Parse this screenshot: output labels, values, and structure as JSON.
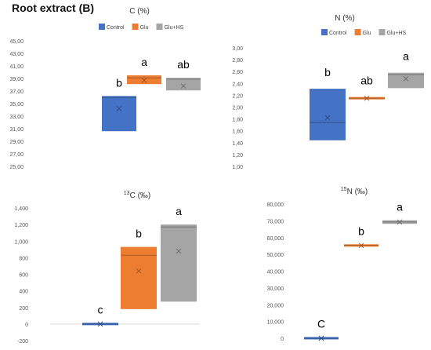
{
  "figure": {
    "title": "Root extract (B)"
  },
  "colors": {
    "Control": "#4472c4",
    "Glu": "#ed7d31",
    "Glu+HS": "#a5a5a5"
  },
  "chart_data": [
    {
      "type": "box",
      "title": "C (%)",
      "categories": [
        "Control",
        "Glu",
        "Glu+HS"
      ],
      "legend": [
        "Control",
        "Glu",
        "Glu+HS"
      ],
      "legend_position": "top",
      "ylim": [
        25,
        45
      ],
      "yticks": [
        "25,00",
        "27,00",
        "29,00",
        "31,00",
        "33,00",
        "35,00",
        "37,00",
        "39,00",
        "41,00",
        "43,00",
        "45,00"
      ],
      "series": [
        {
          "name": "Control",
          "q1": 30.6,
          "q3": 36.2,
          "median": 36.0,
          "mean": 34.2,
          "letter": "b"
        },
        {
          "name": "Glu",
          "q1": 38.1,
          "q3": 39.5,
          "median": 39.1,
          "mean": 38.7,
          "letter": "a"
        },
        {
          "name": "Glu+HS",
          "q1": 37.1,
          "q3": 39.1,
          "median": 38.9,
          "mean": 37.8,
          "letter": "ab"
        }
      ]
    },
    {
      "type": "box",
      "title": "N (%)",
      "categories": [
        "Control",
        "Glu",
        "Glu+HS"
      ],
      "legend": [
        "Control",
        "Glu",
        "Glu+HS"
      ],
      "legend_position": "top",
      "ylim": [
        1.0,
        3.0
      ],
      "yticks": [
        "1,00",
        "1,20",
        "1,40",
        "1,60",
        "1,80",
        "2,00",
        "2,20",
        "2,40",
        "2,60",
        "2,80",
        "3,00"
      ],
      "series": [
        {
          "name": "Control",
          "q1": 1.44,
          "q3": 2.31,
          "median": 1.74,
          "mean": 1.82,
          "letter": "b"
        },
        {
          "name": "Glu",
          "q1": 2.13,
          "q3": 2.17,
          "median": 2.15,
          "mean": 2.15,
          "letter": "ab"
        },
        {
          "name": "Glu+HS",
          "q1": 2.32,
          "q3": 2.58,
          "median": 2.55,
          "mean": 2.48,
          "letter": "a"
        }
      ]
    },
    {
      "type": "box",
      "title_sup": "13",
      "title": "C (‰)",
      "categories": [
        "Control",
        "Glu",
        "Glu+HS"
      ],
      "ylim": [
        -200,
        1400
      ],
      "yticks": [
        "-200",
        "0",
        "200",
        "400",
        "600",
        "800",
        "1,000",
        "1,200",
        "1,400"
      ],
      "series": [
        {
          "name": "Control",
          "q1": -10,
          "q3": 10,
          "median": 0,
          "mean": 0,
          "letter": "c"
        },
        {
          "name": "Glu",
          "q1": 180,
          "q3": 930,
          "median": 830,
          "mean": 640,
          "letter": "b"
        },
        {
          "name": "Glu+HS",
          "q1": 270,
          "q3": 1200,
          "median": 1170,
          "mean": 880,
          "letter": "a"
        }
      ]
    },
    {
      "type": "box",
      "title_sup": "15",
      "title": "N (‰)",
      "categories": [
        "Control",
        "Glu",
        "Glu+HS"
      ],
      "ylim": [
        0,
        80000
      ],
      "yticks": [
        "0",
        "10,000",
        "20,000",
        "30,000",
        "40,000",
        "50,000",
        "60,000",
        "70,000",
        "80,000"
      ],
      "series": [
        {
          "name": "Control",
          "q1": -200,
          "q3": 200,
          "median": 0,
          "mean": 0,
          "letter": "C"
        },
        {
          "name": "Glu",
          "q1": 54800,
          "q3": 55800,
          "median": 55300,
          "mean": 55300,
          "letter": "b"
        },
        {
          "name": "Glu+HS",
          "q1": 68200,
          "q3": 70300,
          "median": 69300,
          "mean": 69300,
          "letter": "a"
        }
      ]
    }
  ]
}
